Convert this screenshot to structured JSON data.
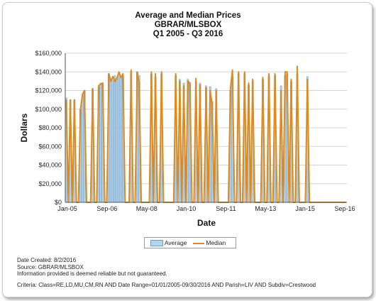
{
  "chart_data": {
    "type": "bar",
    "title": "Average and Median Prices",
    "subtitle": "GBRAR/MLSBOX",
    "period": "Q1 2005 - Q3 2016",
    "xlabel": "Date",
    "ylabel": "Dollars",
    "ylim": [
      0,
      160000
    ],
    "y_ticks": [
      "$0",
      "$20,000",
      "$40,000",
      "$60,000",
      "$80,000",
      "$100,000",
      "$120,000",
      "$140,000",
      "$160,000"
    ],
    "x_ticks": [
      "Jan-05",
      "Sep-06",
      "May-08",
      "Jan-10",
      "Sep-11",
      "May-13",
      "Jan-15",
      "Sep-16"
    ],
    "grid": true,
    "legend_position": "bottom",
    "series": [
      {
        "name": "Average",
        "render": "bar",
        "color": "#b8d4ea",
        "values": [
          112000,
          0,
          110000,
          0,
          110000,
          0,
          0,
          100000,
          115000,
          120000,
          0,
          0,
          0,
          122000,
          0,
          0,
          124000,
          128000,
          128000,
          0,
          0,
          138000,
          132000,
          134000,
          136000,
          132000,
          138000,
          134000,
          135000,
          0,
          0,
          0,
          140000,
          0,
          0,
          140000,
          136000,
          0,
          0,
          0,
          0,
          0,
          138000,
          0,
          135000,
          0,
          0,
          138000,
          0,
          0,
          0,
          0,
          0,
          0,
          136000,
          0,
          132000,
          0,
          128000,
          0,
          132000,
          128000,
          0,
          0,
          130000,
          0,
          128000,
          0,
          0,
          125000,
          0,
          124000,
          108000,
          0,
          122000,
          0,
          0,
          0,
          0,
          0,
          0,
          120000,
          135000,
          0,
          0,
          138000,
          0,
          0,
          138000,
          0,
          126000,
          0,
          130000,
          0,
          0,
          0,
          0,
          132000,
          0,
          0,
          136000,
          0,
          0,
          136000,
          0,
          0,
          125000,
          0,
          136000,
          138000,
          0,
          130000,
          0,
          0,
          138000,
          0,
          0,
          0,
          0,
          135000,
          0,
          0,
          0,
          0,
          0,
          0,
          0,
          0,
          0,
          0,
          0,
          0,
          0,
          0,
          0,
          0,
          0,
          0,
          0
        ]
      },
      {
        "name": "Median",
        "render": "line",
        "color": "#e08a1a",
        "values": [
          110000,
          0,
          110000,
          0,
          110000,
          0,
          0,
          100000,
          116000,
          120000,
          0,
          0,
          0,
          122000,
          0,
          0,
          125000,
          127000,
          128000,
          0,
          0,
          138000,
          130000,
          135000,
          130000,
          133000,
          140000,
          134000,
          138000,
          0,
          0,
          0,
          142000,
          0,
          0,
          140000,
          128000,
          0,
          0,
          0,
          0,
          0,
          140000,
          0,
          138000,
          0,
          0,
          140000,
          0,
          0,
          0,
          0,
          0,
          0,
          138000,
          0,
          130000,
          0,
          125000,
          0,
          130000,
          128000,
          0,
          0,
          133000,
          0,
          126000,
          0,
          0,
          123000,
          0,
          120000,
          105000,
          0,
          120000,
          0,
          0,
          0,
          0,
          0,
          0,
          122000,
          142000,
          0,
          0,
          140000,
          0,
          0,
          140000,
          0,
          128000,
          0,
          132000,
          0,
          0,
          0,
          0,
          134000,
          0,
          0,
          138000,
          0,
          0,
          138000,
          0,
          0,
          120000,
          0,
          140000,
          140000,
          0,
          132000,
          0,
          0,
          146000,
          0,
          0,
          0,
          0,
          132000,
          0,
          0,
          0,
          0,
          0,
          0,
          0,
          0,
          0,
          0,
          0,
          0,
          0,
          0,
          0,
          0,
          0,
          0,
          0
        ]
      }
    ]
  },
  "legend": {
    "average_label": "Average",
    "median_label": "Median"
  },
  "footer": {
    "date_created": "Date Created: 8/2/2016",
    "source": "Source: GBRAR/MLSBOX",
    "disclaimer": "Information provided is deemed reliable but not guaranteed.",
    "criteria": "Criteria: Class=RE,LD,MU,CM,RN AND Date Range=01/01/2005-09/30/2016 AND Parish=LIV AND Subdiv=Crestwood"
  }
}
